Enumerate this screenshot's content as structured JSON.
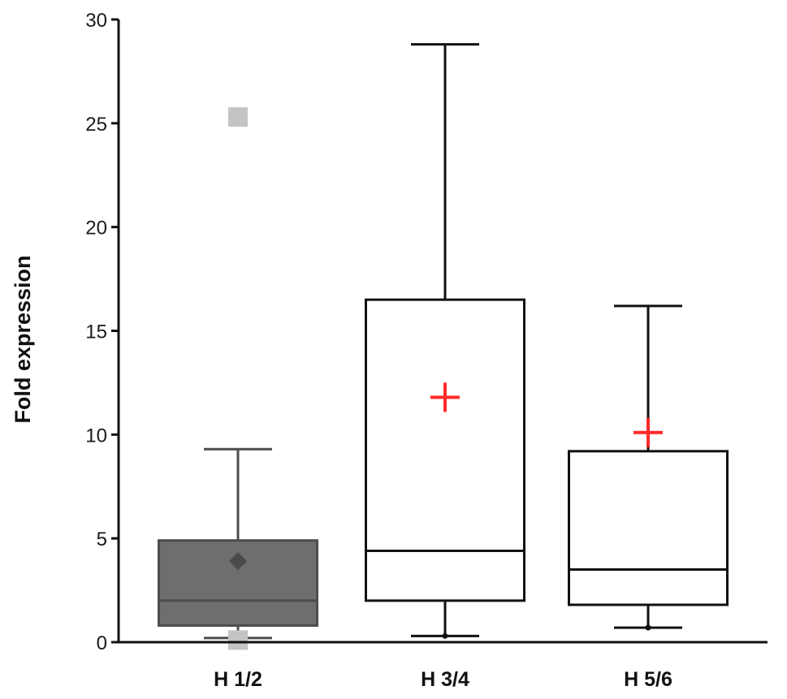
{
  "chart_data": {
    "type": "box",
    "title": "",
    "xlabel": "",
    "ylabel": "Fold expression",
    "ylim": [
      0,
      30
    ],
    "yticks": [
      0,
      5,
      10,
      15,
      20,
      25,
      30
    ],
    "yticks_labels": [
      "0",
      "5",
      "10",
      "15",
      "20",
      "25",
      "30"
    ],
    "grid": false,
    "categories": [
      "H 1/2",
      "H 3/4",
      "H 5/6"
    ],
    "boxes": [
      {
        "category": "H 1/2",
        "whisker_low": 0.2,
        "q1": 0.8,
        "median": 2.0,
        "q3": 4.9,
        "whisker_high": 9.3,
        "mean": 3.9,
        "mean_marker": "diamond",
        "outliers": [
          25.3,
          0.1
        ],
        "fill": "#6e6e6e",
        "stroke": "#4d4d4d"
      },
      {
        "category": "H 3/4",
        "whisker_low": 0.3,
        "q1": 2.0,
        "median": 4.4,
        "q3": 16.5,
        "whisker_high": 28.8,
        "mean": 11.8,
        "mean_marker": "plus",
        "outliers": [],
        "fill": "#ffffff",
        "stroke": "#111111"
      },
      {
        "category": "H 5/6",
        "whisker_low": 0.7,
        "q1": 1.8,
        "median": 3.5,
        "q3": 9.2,
        "whisker_high": 16.2,
        "mean": 10.1,
        "mean_marker": "plus",
        "outliers": [],
        "fill": "#ffffff",
        "stroke": "#111111"
      }
    ],
    "colors": {
      "mean_plus": "#ff2a2a",
      "mean_diamond": "#4a4a4a",
      "outlier": "#c4c4c4",
      "axis": "#111111"
    }
  }
}
